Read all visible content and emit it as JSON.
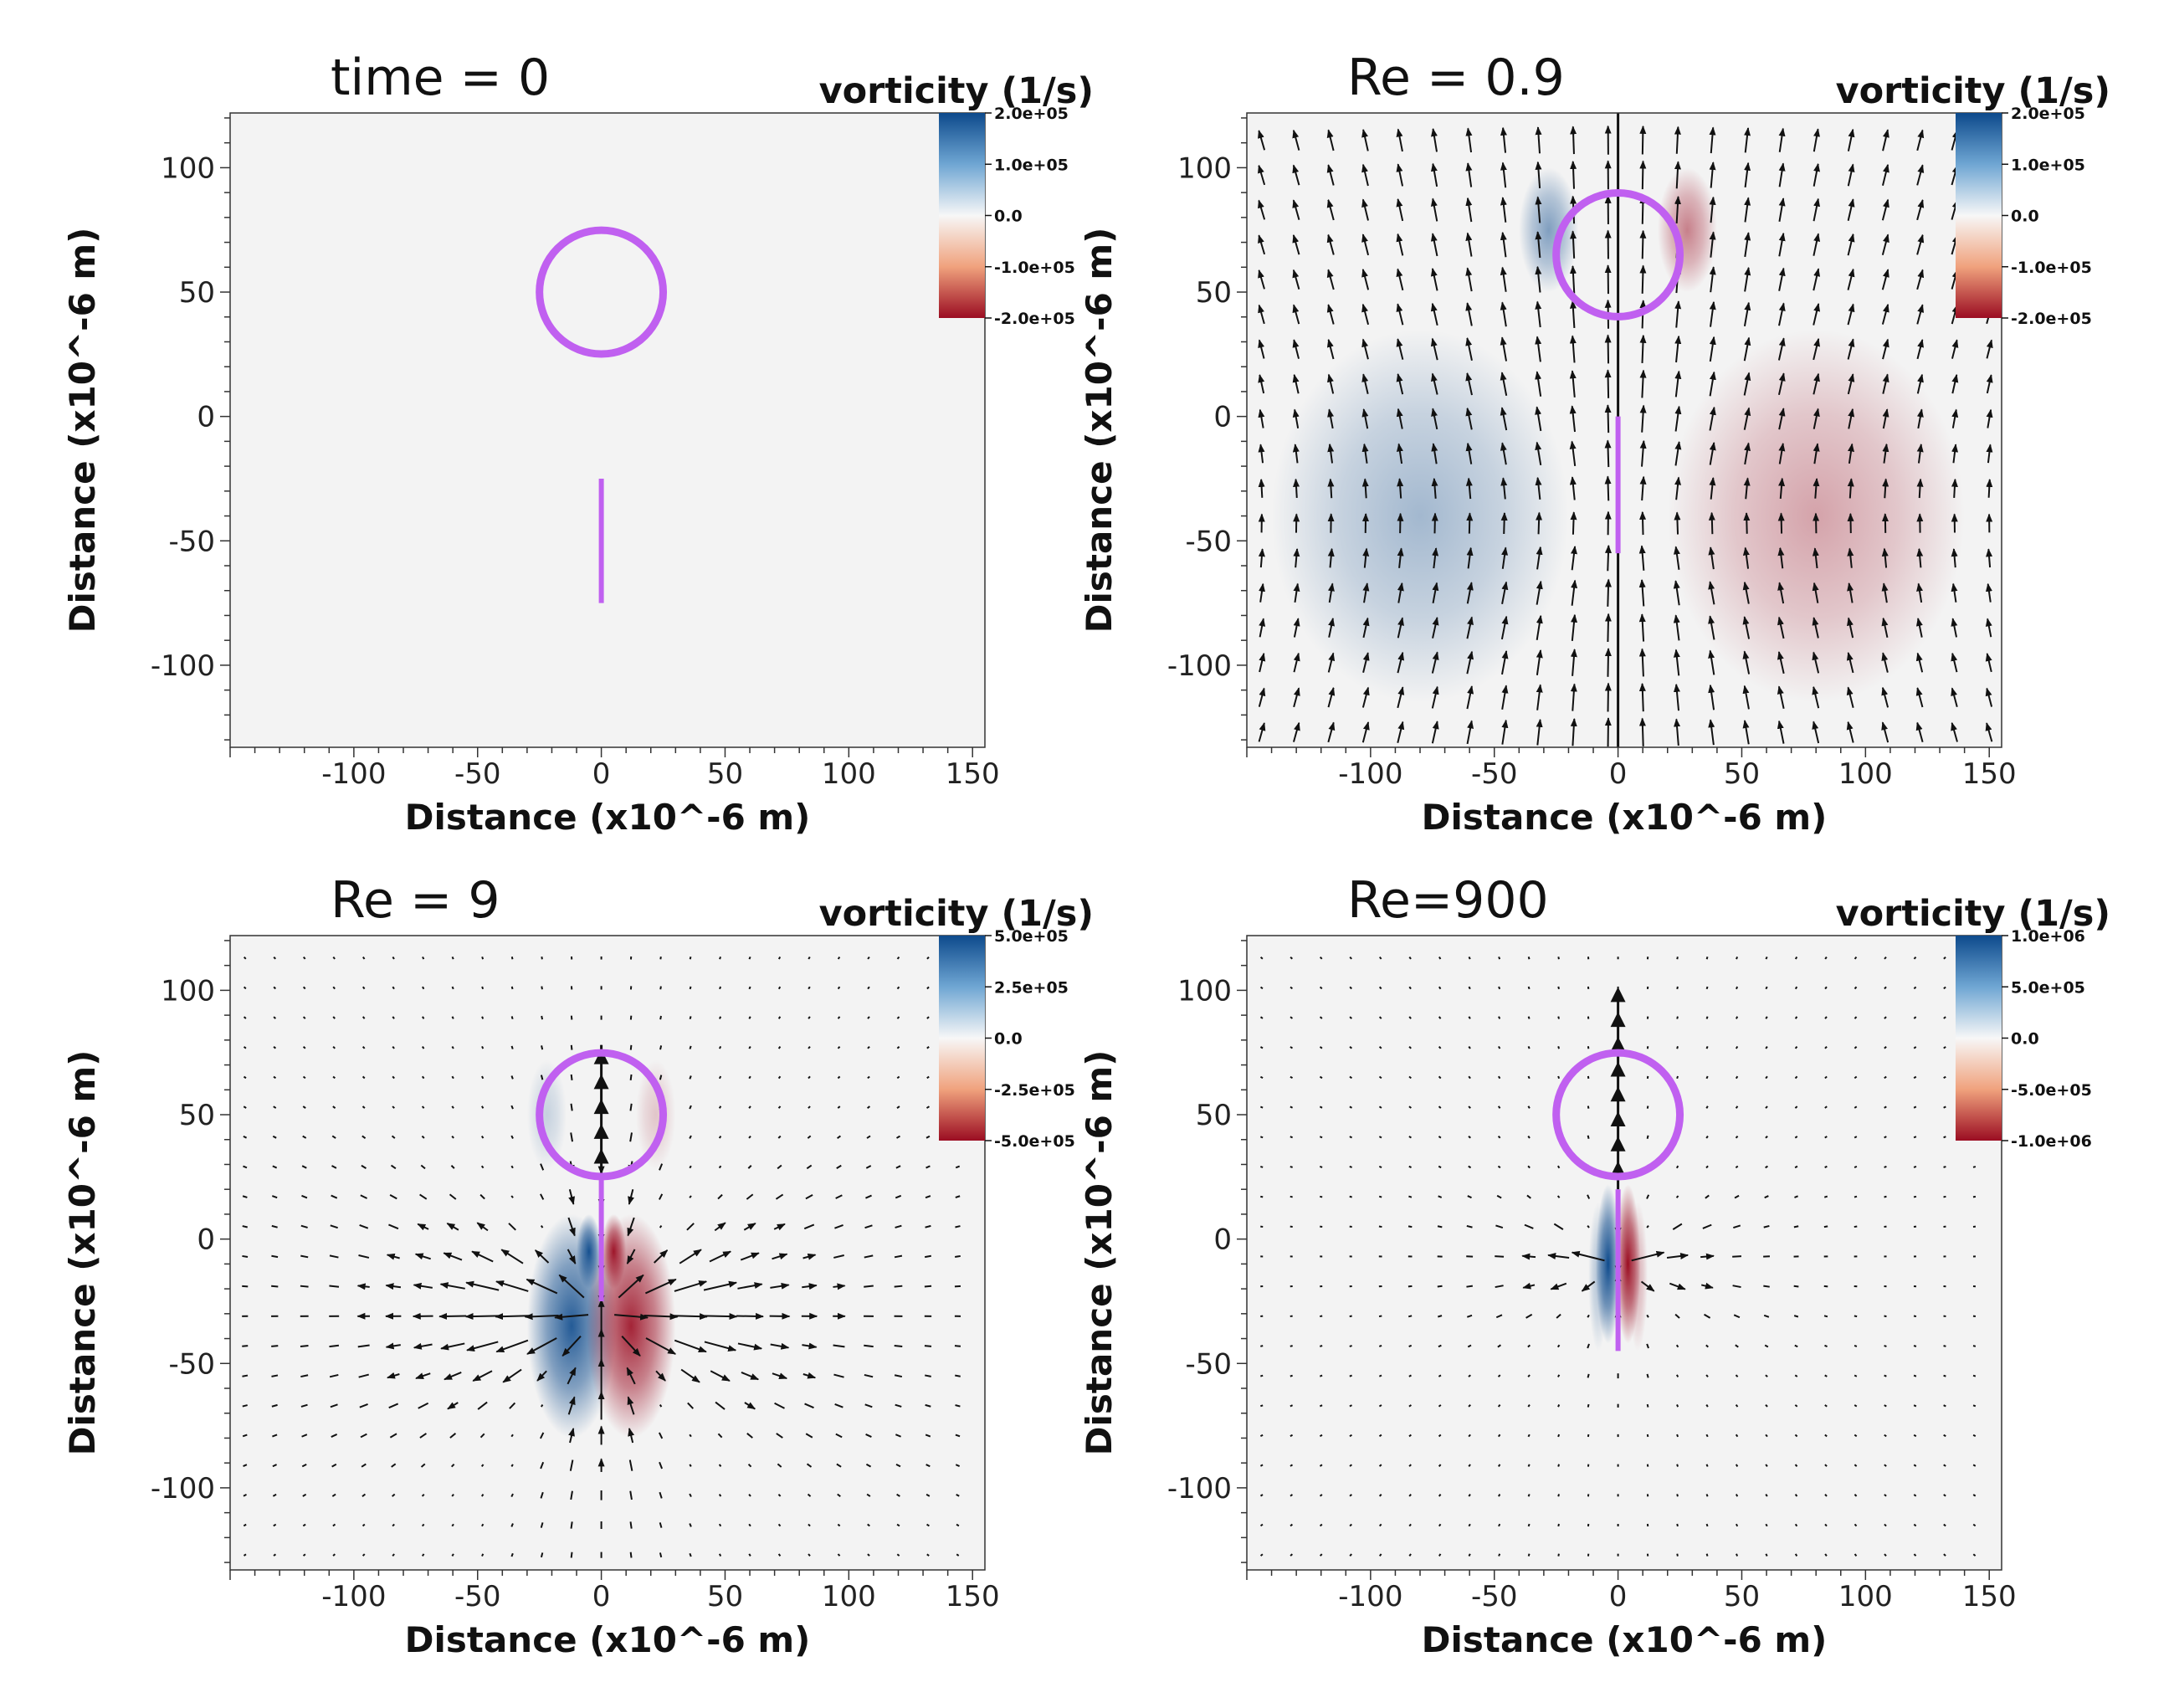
{
  "colors": {
    "background": "#f3f3f3",
    "positive": "#0d4a8c",
    "mid_positive": "#6fa6d3",
    "neutral": "#f3f3f3",
    "mid_negative": "#f0a27d",
    "negative": "#9b0d22",
    "particle": "#c060f0",
    "arrow": "#111111"
  },
  "chart_data": [
    {
      "type": "heatmap",
      "title": "time = 0",
      "colorbar_title": "vorticity (1/s)",
      "colorbar_ticks": [
        "2.0e+05",
        "1.0e+05",
        "0.0",
        "-1.0e+05",
        "-2.0e+05"
      ],
      "clim": [
        -200000,
        200000
      ],
      "xlabel": "Distance (x10^-6 m)",
      "ylabel": "Distance (x10^-6 m)",
      "xlim": [
        -150,
        155
      ],
      "ylim": [
        -133,
        122
      ],
      "xticks": [
        -100,
        -50,
        0,
        50,
        100,
        150
      ],
      "yticks": [
        100,
        50,
        0,
        -50,
        -100
      ],
      "circle": {
        "cx": 0,
        "cy": 50,
        "r": 25
      },
      "rod": {
        "x": 0,
        "y1": -75,
        "y2": -25
      },
      "blobs": [],
      "vectors": "none"
    },
    {
      "type": "heatmap",
      "title": "Re = 0.9",
      "colorbar_title": "vorticity (1/s)",
      "colorbar_ticks": [
        "2.0e+05",
        "1.0e+05",
        "0.0",
        "-1.0e+05",
        "-2.0e+05"
      ],
      "clim": [
        -200000,
        200000
      ],
      "xlabel": "Distance (x10^-6 m)",
      "ylabel": "Distance (x10^-6 m)",
      "xlim": [
        -150,
        155
      ],
      "ylim": [
        -133,
        122
      ],
      "xticks": [
        -100,
        -50,
        0,
        50,
        100,
        150
      ],
      "yticks": [
        100,
        50,
        0,
        -50,
        -100
      ],
      "circle": {
        "cx": 0,
        "cy": 65,
        "r": 25
      },
      "rod": {
        "x": 0,
        "y1": -55,
        "y2": 0
      },
      "blobs": [
        {
          "x": -80,
          "y": -40,
          "rx": 60,
          "ry": 75,
          "value": 0.3
        },
        {
          "x": 80,
          "y": -40,
          "rx": 60,
          "ry": 75,
          "value": -0.3
        },
        {
          "x": -28,
          "y": 75,
          "rx": 12,
          "ry": 25,
          "value": 0.45
        },
        {
          "x": 28,
          "y": 75,
          "rx": 12,
          "ry": 25,
          "value": -0.45
        }
      ],
      "vectors": "stokes"
    },
    {
      "type": "heatmap",
      "title": "Re = 9",
      "colorbar_title": "vorticity (1/s)",
      "colorbar_ticks": [
        "5.0e+05",
        "2.5e+05",
        "0.0",
        "-2.5e+05",
        "-5.0e+05"
      ],
      "clim": [
        -500000,
        500000
      ],
      "xlabel": "Distance (x10^-6 m)",
      "ylabel": "Distance (x10^-6 m)",
      "xlim": [
        -150,
        155
      ],
      "ylim": [
        -133,
        122
      ],
      "xticks": [
        -100,
        -50,
        0,
        50,
        100,
        150
      ],
      "yticks": [
        100,
        50,
        0,
        -50,
        -100
      ],
      "circle": {
        "cx": 0,
        "cy": 50,
        "r": 25
      },
      "rod": {
        "x": 0,
        "y1": -25,
        "y2": 25
      },
      "blobs": [
        {
          "x": -12,
          "y": -35,
          "rx": 18,
          "ry": 45,
          "value": 0.85
        },
        {
          "x": 12,
          "y": -35,
          "rx": 18,
          "ry": 45,
          "value": -0.85
        },
        {
          "x": -5,
          "y": -5,
          "rx": 5,
          "ry": 15,
          "value": 0.9
        },
        {
          "x": 5,
          "y": -5,
          "rx": 5,
          "ry": 15,
          "value": -0.9
        },
        {
          "x": -22,
          "y": 50,
          "rx": 8,
          "ry": 22,
          "value": 0.15
        },
        {
          "x": 22,
          "y": 50,
          "rx": 8,
          "ry": 22,
          "value": -0.15
        }
      ],
      "vectors": "dipole"
    },
    {
      "type": "heatmap",
      "title": "Re=900",
      "colorbar_title": "vorticity (1/s)",
      "colorbar_ticks": [
        "1.0e+06",
        "5.0e+05",
        "0.0",
        "-5.0e+05",
        "-1.0e+06"
      ],
      "clim": [
        -1000000,
        1000000
      ],
      "xlabel": "Distance (x10^-6 m)",
      "ylabel": "Distance (x10^-6 m)",
      "xlim": [
        -150,
        155
      ],
      "ylim": [
        -133,
        122
      ],
      "xticks": [
        -100,
        -50,
        0,
        50,
        100,
        150
      ],
      "yticks": [
        100,
        50,
        0,
        -50,
        -100
      ],
      "circle": {
        "cx": 0,
        "cy": 50,
        "r": 25
      },
      "rod": {
        "x": 0,
        "y1": -45,
        "y2": 20
      },
      "blobs": [
        {
          "x": -4,
          "y": -10,
          "rx": 5,
          "ry": 32,
          "value": 1.0
        },
        {
          "x": 4,
          "y": -10,
          "rx": 5,
          "ry": 32,
          "value": -1.0
        },
        {
          "x": -8,
          "y": -15,
          "rx": 4,
          "ry": 30,
          "value": 0.25
        },
        {
          "x": 8,
          "y": -15,
          "rx": 4,
          "ry": 30,
          "value": -0.25
        }
      ],
      "vectors": "jet"
    }
  ]
}
